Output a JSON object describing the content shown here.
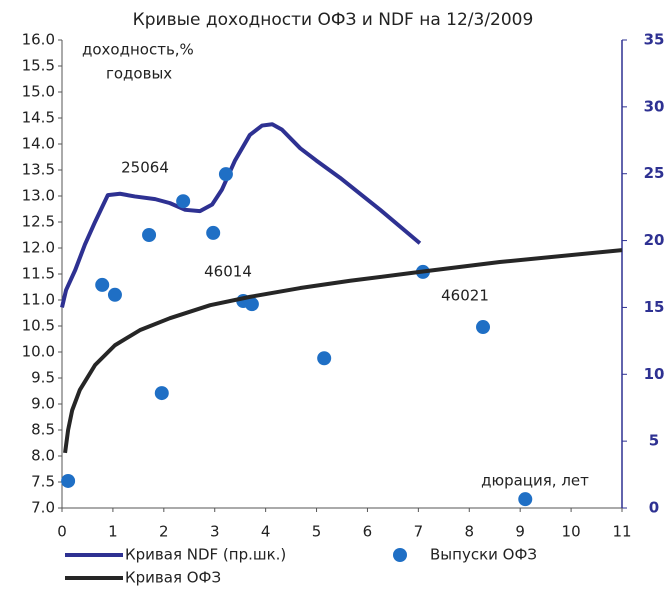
{
  "chart_data": {
    "type": "combo",
    "title": "Кривые доходности ОФЗ и NDF на 12/3/2009",
    "ylabel": [
      "доходность,%",
      "годовых"
    ],
    "xlabel": "дюрация, лет",
    "annotations": [
      "25064",
      "46014",
      "46021"
    ],
    "xlim": [
      0,
      11
    ],
    "xticks": [
      0,
      1,
      2,
      3,
      4,
      5,
      6,
      7,
      8,
      9,
      10,
      11
    ],
    "ylim": [
      7,
      16
    ],
    "yticks": [
      {
        "value": 7,
        "label": "7.0"
      },
      {
        "value": 7.5,
        "label": "7.5"
      },
      {
        "value": 8,
        "label": "8.0"
      },
      {
        "value": 8.5,
        "label": "8.5"
      },
      {
        "value": 9,
        "label": "9.0"
      },
      {
        "value": 9.5,
        "label": "9.5"
      },
      {
        "value": 10,
        "label": "10.0"
      },
      {
        "value": 10.5,
        "label": "10.5"
      },
      {
        "value": 11,
        "label": "11.0"
      },
      {
        "value": 11.5,
        "label": "11.5"
      },
      {
        "value": 12,
        "label": "12.0"
      },
      {
        "value": 12.5,
        "label": "12.5"
      },
      {
        "value": 13,
        "label": "13.0"
      },
      {
        "value": 13.5,
        "label": "13.5"
      },
      {
        "value": 14,
        "label": "14.0"
      },
      {
        "value": 14.5,
        "label": "14.5"
      },
      {
        "value": 15,
        "label": "15.0"
      },
      {
        "value": 15.5,
        "label": "15.5"
      },
      {
        "value": 16,
        "label": "16.0"
      }
    ],
    "y2lim": [
      0,
      35
    ],
    "y2ticks": [
      0,
      5,
      10,
      15,
      20,
      25,
      30,
      35
    ],
    "grid": false,
    "series": [
      {
        "name": "Кривая NDF (пр.шк.)",
        "type": "line",
        "axis": "y2",
        "color": "#2e3192",
        "x": [
          0,
          0.08,
          0.26,
          0.45,
          0.65,
          0.9,
          1.14,
          1.43,
          1.83,
          2.12,
          2.42,
          2.71,
          2.95,
          3.14,
          3.4,
          3.69,
          3.93,
          4.13,
          4.32,
          4.68,
          4.99,
          5.46,
          6.25,
          7.03
        ],
        "values": [
          15.0,
          16.3,
          17.8,
          19.7,
          21.4,
          23.4,
          23.5,
          23.3,
          23.1,
          22.8,
          22.3,
          22.2,
          22.7,
          23.8,
          26.0,
          27.9,
          28.6,
          28.7,
          28.3,
          26.9,
          26.0,
          24.7,
          22.3,
          19.8
        ]
      },
      {
        "name": "Выпуски ОФЗ",
        "type": "scatter",
        "color": "#1f6fc5",
        "x": [
          0.12,
          0.79,
          1.04,
          1.71,
          1.96,
          2.38,
          2.97,
          3.22,
          3.56,
          3.73,
          5.15,
          7.09,
          8.27,
          9.1
        ],
        "values": [
          7.52,
          11.29,
          11.1,
          12.25,
          9.21,
          12.9,
          12.29,
          13.42,
          10.98,
          10.92,
          9.88,
          11.54,
          10.48,
          7.17
        ]
      },
      {
        "name": "Кривая ОФЗ",
        "type": "line",
        "color": "#262626",
        "x": [
          0.06,
          0.12,
          0.2,
          0.35,
          0.65,
          1.04,
          1.53,
          2.12,
          2.91,
          3.69,
          4.68,
          5.66,
          7.03,
          8.6,
          11
        ],
        "values": [
          8.06,
          8.5,
          8.88,
          9.27,
          9.75,
          10.13,
          10.42,
          10.65,
          10.9,
          11.06,
          11.23,
          11.37,
          11.54,
          11.73,
          11.96
        ]
      }
    ]
  }
}
